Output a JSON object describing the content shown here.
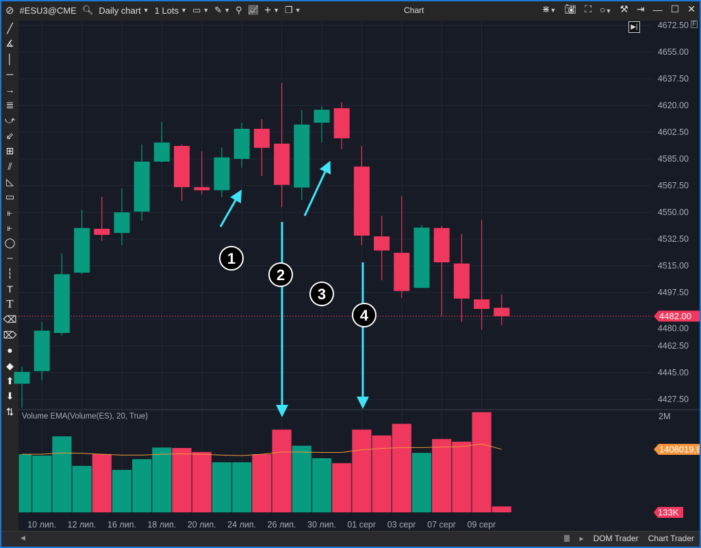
{
  "titlebar": {
    "symbol": "#ESU3@CME",
    "timeframe": "Daily chart",
    "lots": "1 Lots",
    "window_title": "Chart"
  },
  "bottom_tabs": [
    "DOM Trader",
    "Chart Trader"
  ],
  "price_axis": {
    "ticks": [
      "4672.50",
      "4655.00",
      "4637.50",
      "4620.00",
      "4602.50",
      "4585.00",
      "4567.50",
      "4550.00",
      "4532.50",
      "4515.00",
      "4497.50",
      "4480.00",
      "4462.50",
      "4445.00",
      "4427.50"
    ],
    "last_price": "4482.00",
    "flag": "F"
  },
  "volume_panel": {
    "title": "Volume EMA(Volume(ES), 20, True)",
    "top_label": "2M",
    "ema_label": "1408019,8",
    "last_volume_label": "133K"
  },
  "colors": {
    "up": "#089b7f",
    "down": "#f0375d",
    "annotation": "#3fe3f7",
    "ema": "#f09a3a",
    "background": "#161b26"
  },
  "annotations": [
    "1",
    "2",
    "3",
    "4"
  ],
  "chart_data": {
    "type": "candlestick",
    "ylim": [
      4427.5,
      4672.5
    ],
    "x_labels": [
      "",
      "10 лип.",
      "",
      "12 лип.",
      "",
      "16 лип.",
      "",
      "18 лип.",
      "",
      "20 лип.",
      "",
      "24 лип.",
      "",
      "26 лип.",
      "",
      "30 лип.",
      "",
      "01 серг",
      "",
      "03 серг",
      "",
      "07 серг",
      "",
      "09 серг",
      ""
    ],
    "ohlc": [
      [
        4437.75,
        4449,
        4422,
        4445.5
      ],
      [
        4446,
        4478.25,
        4440,
        4472.5
      ],
      [
        4471,
        4523,
        4469.25,
        4509.5
      ],
      [
        4510.5,
        4551.75,
        4509.5,
        4539.75
      ],
      [
        4539.25,
        4560.25,
        4531.25,
        4535.25
      ],
      [
        4536.5,
        4565.75,
        4528.5,
        4550
      ],
      [
        4550.5,
        4594.5,
        4544.5,
        4583.25
      ],
      [
        4583.25,
        4609.25,
        4582.75,
        4595.75
      ],
      [
        4593.5,
        4594.5,
        4557.5,
        4566.5
      ],
      [
        4566.5,
        4590,
        4561.75,
        4564.5
      ],
      [
        4564.5,
        4592.5,
        4560,
        4586
      ],
      [
        4585,
        4608.75,
        4579.25,
        4604.75
      ],
      [
        4604.75,
        4611,
        4573.75,
        4592.25
      ],
      [
        4595,
        4634.75,
        4553.5,
        4568
      ],
      [
        4566.25,
        4617,
        4558,
        4607.5
      ],
      [
        4608.75,
        4619.5,
        4595.75,
        4617.25
      ],
      [
        4618.25,
        4622.25,
        4591.25,
        4598.5
      ],
      [
        4580,
        4593.5,
        4528.5,
        4534.75
      ],
      [
        4534.25,
        4547.75,
        4505.5,
        4525
      ],
      [
        4523.5,
        4560.75,
        4494,
        4498.5
      ],
      [
        4500.5,
        4541.75,
        4500.5,
        4540
      ],
      [
        4539.75,
        4541,
        4482.25,
        4517.25
      ],
      [
        4516.5,
        4536,
        4478.25,
        4493.5
      ],
      [
        4493,
        4545,
        4473.25,
        4486.75
      ],
      [
        4487.5,
        4496.25,
        4476,
        4482
      ]
    ],
    "volume_millions": [
      1.3,
      1.27,
      1.7,
      1.04,
      1.3,
      0.95,
      1.19,
      1.45,
      1.44,
      1.35,
      1.12,
      1.12,
      1.3,
      1.85,
      1.49,
      1.21,
      1.1,
      1.85,
      1.72,
      1.98,
      1.33,
      1.64,
      1.58,
      2.24,
      0.133
    ],
    "volume_ema_millions": [
      1.3,
      1.3,
      1.33,
      1.32,
      1.3,
      1.28,
      1.28,
      1.3,
      1.31,
      1.3,
      1.28,
      1.27,
      1.3,
      1.35,
      1.35,
      1.34,
      1.34,
      1.4,
      1.43,
      1.45,
      1.45,
      1.46,
      1.47,
      1.53,
      1.41
    ],
    "last_price": 4482.0
  }
}
